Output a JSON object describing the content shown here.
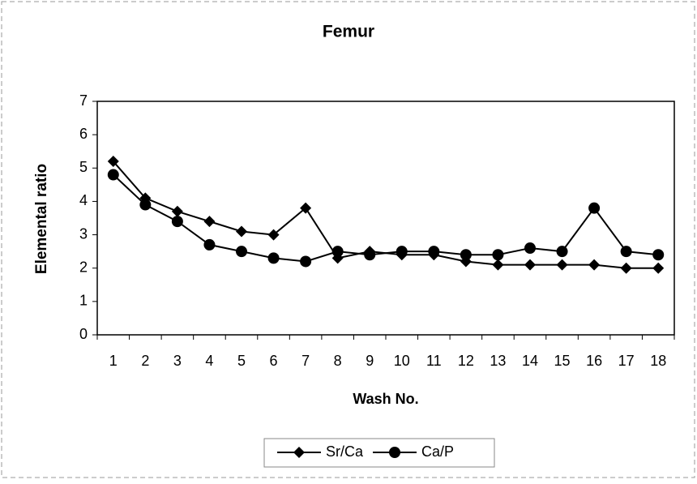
{
  "chart_data": {
    "type": "line",
    "title": "Femur",
    "x_label": "Wash No.",
    "y_label": "Elemental ratio",
    "categories": [
      "1",
      "2",
      "3",
      "4",
      "5",
      "6",
      "7",
      "8",
      "9",
      "10",
      "11",
      "12",
      "13",
      "14",
      "15",
      "16",
      "17",
      "18"
    ],
    "series": [
      {
        "name": "Sr/Ca",
        "color": "#000000",
        "marker": "diamond",
        "values": [
          5.2,
          4.1,
          3.7,
          3.4,
          3.1,
          3.0,
          3.8,
          2.3,
          2.5,
          2.4,
          2.4,
          2.2,
          2.1,
          2.1,
          2.1,
          2.1,
          2.0,
          2.0
        ]
      },
      {
        "name": "Ca/P",
        "color": "#000000",
        "marker": "circle",
        "values": [
          4.8,
          3.9,
          3.4,
          2.7,
          2.5,
          2.3,
          2.2,
          2.5,
          2.4,
          2.5,
          2.5,
          2.4,
          2.4,
          2.6,
          2.5,
          3.8,
          2.5,
          2.4
        ]
      }
    ],
    "ylim": [
      0,
      7
    ],
    "yticks": [
      0,
      1,
      2,
      3,
      4,
      5,
      6,
      7
    ],
    "legend": "bottom"
  }
}
